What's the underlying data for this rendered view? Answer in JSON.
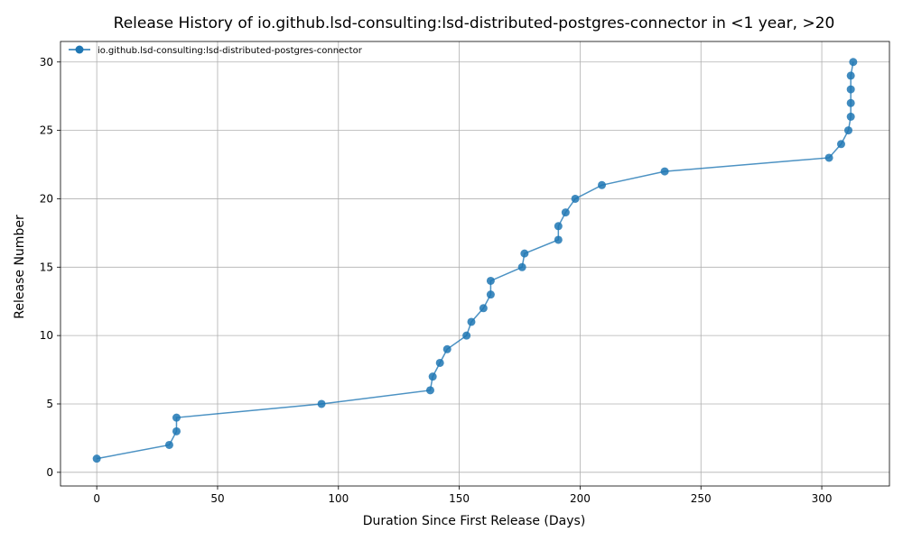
{
  "chart_data": {
    "type": "line",
    "title": "Release History of io.github.lsd-consulting:lsd-distributed-postgres-connector in <1 year, >20",
    "xlabel": "Duration Since First Release (Days)",
    "ylabel": "Release Number",
    "xlim": [
      -15,
      328
    ],
    "ylim": [
      -1,
      31.5
    ],
    "xticks": [
      0,
      50,
      100,
      150,
      200,
      250,
      300
    ],
    "yticks": [
      0,
      5,
      10,
      15,
      20,
      25,
      30
    ],
    "grid": true,
    "legend_position": "top-left",
    "colors": {
      "series": "#1f77b4"
    },
    "series": [
      {
        "name": "io.github.lsd-consulting:lsd-distributed-postgres-connector",
        "x": [
          0,
          30,
          33,
          33,
          93,
          138,
          139,
          142,
          145,
          153,
          155,
          160,
          163,
          163,
          176,
          177,
          191,
          191,
          194,
          198,
          209,
          235,
          303,
          308,
          311,
          312,
          312,
          312,
          312,
          313
        ],
        "y": [
          1,
          2,
          3,
          4,
          5,
          6,
          7,
          8,
          9,
          10,
          11,
          12,
          13,
          14,
          15,
          16,
          17,
          18,
          19,
          20,
          21,
          22,
          23,
          24,
          25,
          26,
          27,
          28,
          29,
          30
        ]
      }
    ]
  }
}
